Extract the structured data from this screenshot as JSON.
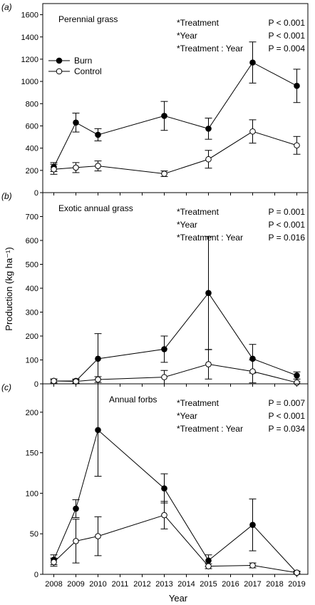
{
  "figure": {
    "ylabel": "Production (kg ha⁻¹)",
    "xlabel": "Year"
  },
  "chart_data": [
    {
      "type": "line",
      "panel_label": "(a)",
      "title": "Perennial grass",
      "x": [
        2008,
        2009,
        2010,
        2013,
        2015,
        2017,
        2019
      ],
      "xlim": [
        2007.5,
        2019.5
      ],
      "ylim": [
        0,
        1700
      ],
      "yticks": [
        0,
        200,
        400,
        600,
        800,
        1000,
        1200,
        1400,
        1600
      ],
      "series": [
        {
          "name": "Burn",
          "marker": "filled",
          "values": [
            230,
            630,
            520,
            690,
            575,
            1170,
            960
          ],
          "errors": [
            40,
            85,
            55,
            130,
            95,
            185,
            150
          ]
        },
        {
          "name": "Control",
          "marker": "open",
          "values": [
            210,
            225,
            240,
            170,
            300,
            550,
            425
          ],
          "errors": [
            45,
            45,
            45,
            25,
            80,
            105,
            80
          ]
        }
      ],
      "legend": "upper-left",
      "stats": [
        {
          "term": "*Treatment",
          "p": "P < 0.001"
        },
        {
          "term": "*Year",
          "p": "P < 0.001"
        },
        {
          "term": "*Treatment : Year",
          "p": "P = 0.004"
        }
      ]
    },
    {
      "type": "line",
      "panel_label": "(b)",
      "title": "Exotic annual grass",
      "x": [
        2008,
        2009,
        2010,
        2013,
        2015,
        2017,
        2019
      ],
      "xlim": [
        2007.5,
        2019.5
      ],
      "ylim": [
        0,
        800
      ],
      "yticks": [
        0,
        100,
        200,
        300,
        400,
        500,
        600,
        700
      ],
      "series": [
        {
          "name": "Burn",
          "marker": "filled",
          "values": [
            12,
            12,
            105,
            145,
            380,
            105,
            35
          ],
          "errors": [
            8,
            8,
            105,
            55,
            237,
            60,
            15
          ]
        },
        {
          "name": "Control",
          "marker": "open",
          "values": [
            12,
            10,
            18,
            28,
            82,
            52,
            5
          ],
          "errors": [
            8,
            7,
            12,
            28,
            62,
            48,
            4
          ]
        }
      ],
      "stats": [
        {
          "term": "*Treatment",
          "p": "P = 0.001"
        },
        {
          "term": "*Year",
          "p": "P < 0.001"
        },
        {
          "term": "*Treatment : Year",
          "p": "P = 0.016"
        }
      ]
    },
    {
      "type": "line",
      "panel_label": "(c)",
      "title": "Annual forbs",
      "x": [
        2008,
        2009,
        2010,
        2013,
        2015,
        2017,
        2019
      ],
      "xlim": [
        2007.5,
        2019.5
      ],
      "ylim": [
        0,
        235
      ],
      "yticks": [
        0,
        50,
        100,
        150,
        200
      ],
      "xticks": [
        2008,
        2009,
        2010,
        2011,
        2012,
        2013,
        2014,
        2015,
        2016,
        2017,
        2018,
        2019
      ],
      "series": [
        {
          "name": "Burn",
          "marker": "filled",
          "values": [
            18,
            81,
            178,
            106,
            17,
            61,
            2
          ],
          "errors": [
            6,
            11,
            57,
            18,
            7,
            32,
            2
          ]
        },
        {
          "name": "Control",
          "marker": "open",
          "values": [
            15,
            41,
            47,
            73,
            10,
            11,
            2
          ],
          "errors": [
            5,
            27,
            24,
            17,
            3,
            3,
            1
          ]
        }
      ],
      "stats": [
        {
          "term": "*Treatment",
          "p": "P = 0.007"
        },
        {
          "term": "*Year",
          "p": "P < 0.001"
        },
        {
          "term": "*Treatment : Year",
          "p": "P = 0.034"
        }
      ]
    }
  ]
}
